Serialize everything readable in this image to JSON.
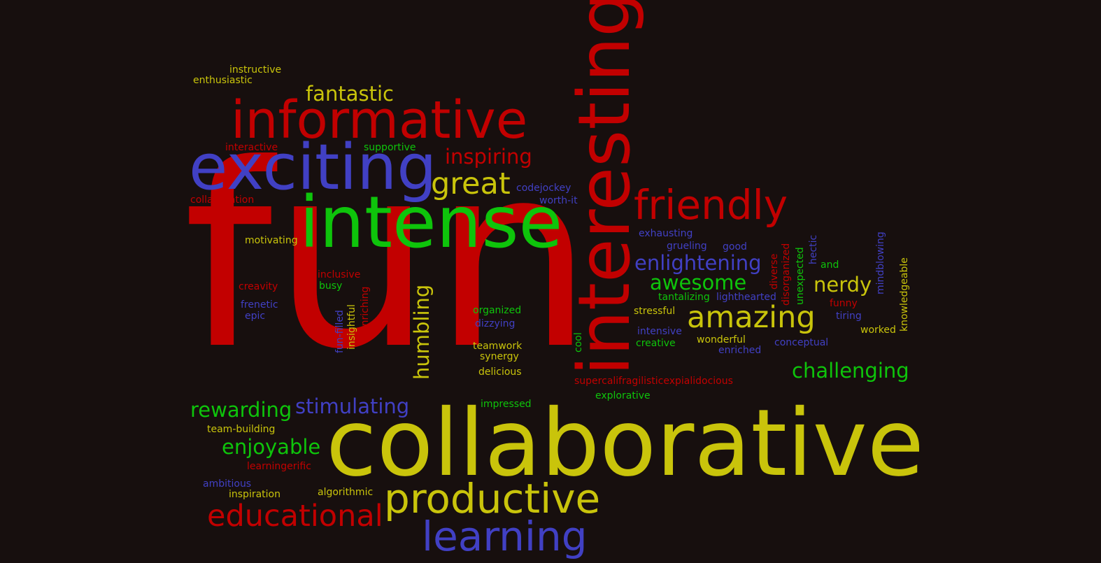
{
  "colors": {
    "background": "#170f0e",
    "red": "#c20000",
    "yellow": "#c9c40b",
    "green": "#0ec40b",
    "blue": "#4140c4"
  },
  "words": {
    "fun": "fun",
    "collaborative": "collaborative",
    "interesting": "interesting",
    "intense": "intense",
    "exciting": "exciting",
    "informative": "informative",
    "friendly": "friendly",
    "productive": "productive",
    "learning": "learning",
    "educational": "educational",
    "great": "great",
    "amazing": "amazing",
    "enlightening": "enlightening",
    "awesome": "awesome",
    "nerdy": "nerdy",
    "challenging": "challenging",
    "stimulating": "stimulating",
    "rewarding": "rewarding",
    "enjoyable": "enjoyable",
    "inspiring": "inspiring",
    "fantastic": "fantastic",
    "humbling": "humbling",
    "instructive": "instructive",
    "enthusiastic": "enthusiastic",
    "interactive": "interactive",
    "supportive": "supportive",
    "collaboration": "collaboration",
    "codejockey": "codejockey",
    "worth_it": "worth-it",
    "motivating": "motivating",
    "inclusive": "inclusive",
    "busy": "busy",
    "creavity": "creavity",
    "frenetic": "frenetic",
    "epic": "epic",
    "fun_filled": "fun-filled",
    "insightful": "insightful",
    "enriching": "enriching",
    "organized": "organized",
    "dizzying": "dizzying",
    "teamwork": "teamwork",
    "synergy": "synergy",
    "delicious": "delicious",
    "impressed": "impressed",
    "team_building": "team-building",
    "learningerific": "learningerific",
    "ambitious": "ambitious",
    "inspiration": "inspiration",
    "algorithmic": "algorithmic",
    "exhausting": "exhausting",
    "grueling": "grueling",
    "good": "good",
    "diverse": "diverse",
    "disorganized": "disorganized",
    "unexpected": "unexpected",
    "hectic": "hectic",
    "and": "and",
    "mindblowing": "mindblowing",
    "knowledgeable": "knowledgeable",
    "tantalizing": "tantalizing",
    "lighthearted": "lighthearted",
    "funny": "funny",
    "stressful": "stressful",
    "tiring": "tiring",
    "intensive": "intensive",
    "worked": "worked",
    "cool": "cool",
    "creative": "creative",
    "wonderful": "wonderful",
    "enriched": "enriched",
    "conceptual": "conceptual",
    "supercalifragilisticexpialidocious": "supercalifragilisticexpialidocious",
    "explorative": "explorative"
  }
}
